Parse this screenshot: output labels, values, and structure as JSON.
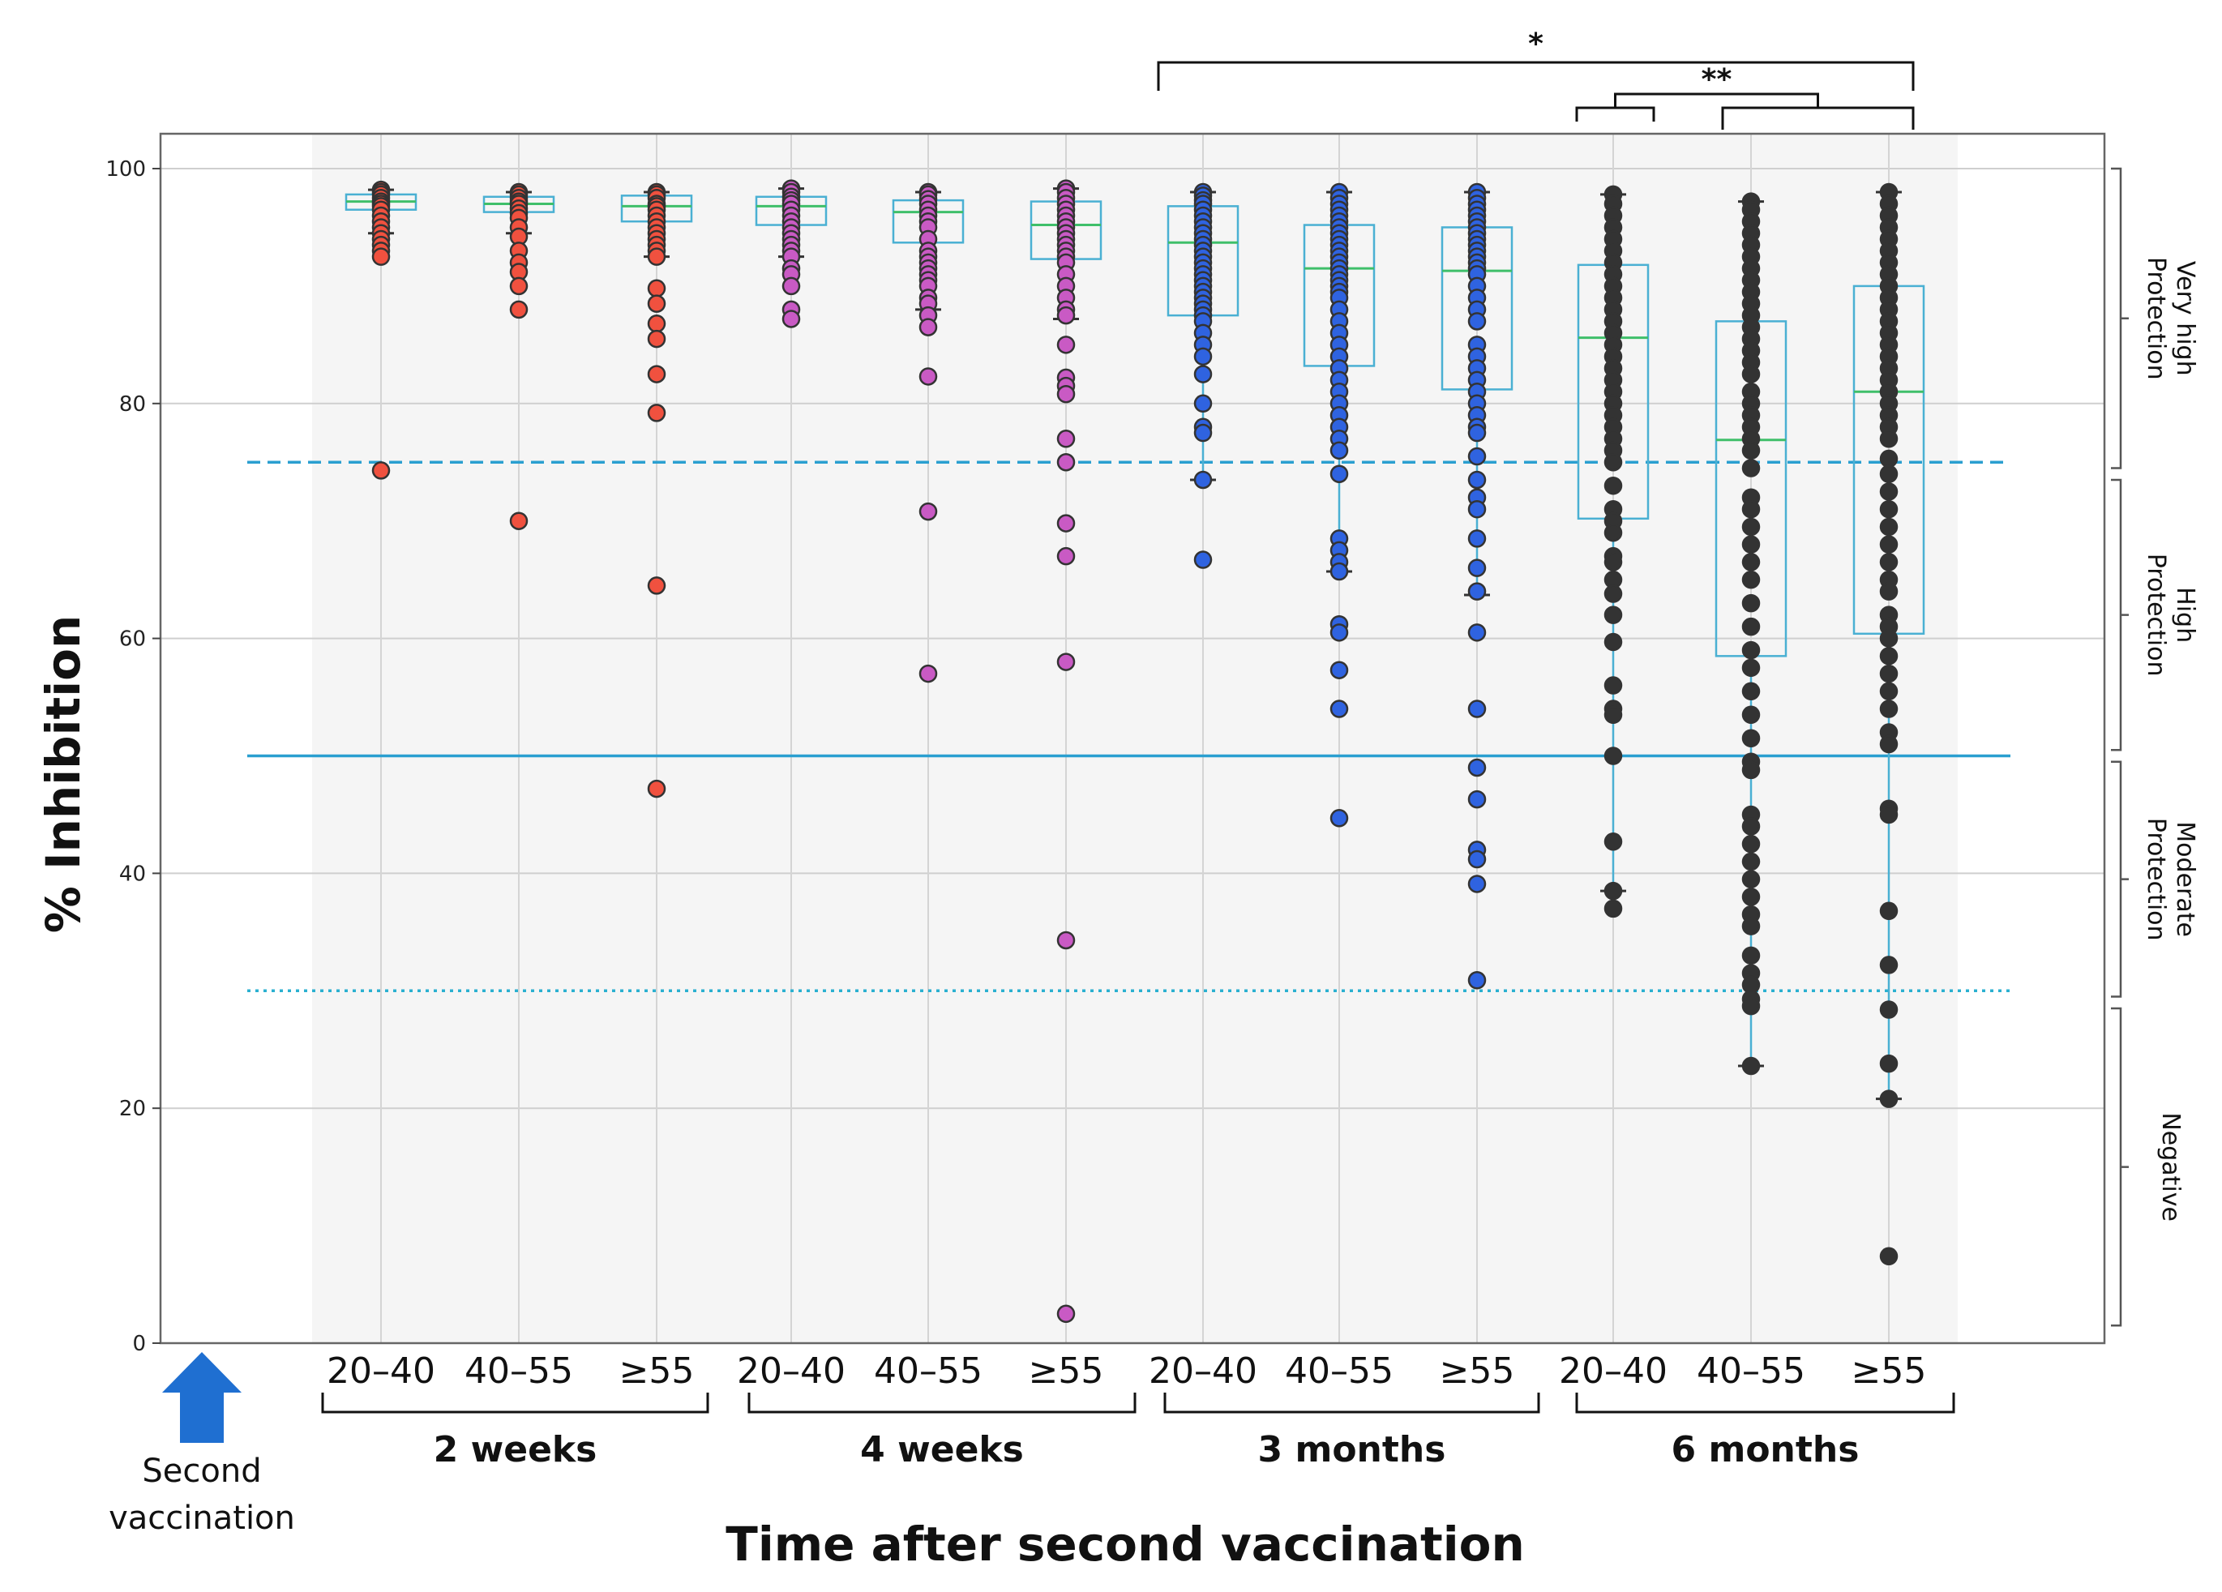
{
  "chart_data": {
    "type": "box",
    "title": "",
    "xlabel": "Time after second vaccination",
    "ylabel": "% Inhibition",
    "ylim": [
      0,
      100
    ],
    "yticks": [
      0,
      20,
      40,
      60,
      80,
      100
    ],
    "grid": true,
    "periods": [
      "2 weeks",
      "4 weeks",
      "3 months",
      "6 months"
    ],
    "age_groups": [
      "20–40",
      "40–55",
      "≥55"
    ],
    "reference_lines": [
      {
        "name": "very-high-threshold",
        "value": 75,
        "style": "dashed",
        "color": "#2a9fd0"
      },
      {
        "name": "high-threshold",
        "value": 50,
        "style": "solid",
        "color": "#2a9fd0"
      },
      {
        "name": "moderate-threshold",
        "value": 30,
        "style": "dotted",
        "color": "#2ab0d0"
      }
    ],
    "protection_zones": [
      {
        "label": "Very high Protection",
        "lines": [
          "Very high",
          "Protection"
        ],
        "range": [
          74.5,
          100
        ]
      },
      {
        "label": "High Protection",
        "lines": [
          "High",
          "Protection"
        ],
        "range": [
          50.5,
          73.5
        ]
      },
      {
        "label": "Moderate Protection",
        "lines": [
          "Moderate",
          "Protection"
        ],
        "range": [
          29.5,
          49.5
        ]
      },
      {
        "label": "Negative",
        "lines": [
          "Negative"
        ],
        "range": [
          1.5,
          28.5
        ]
      }
    ],
    "significance": [
      {
        "label": "*",
        "from": [
          2,
          0
        ],
        "to": [
          3,
          2
        ],
        "level": 1
      },
      {
        "label": "**",
        "pairs": [
          [
            [
              3,
              0
            ],
            [
              3,
              1
            ]
          ],
          [
            [
              3,
              1
            ],
            [
              3,
              2
            ]
          ]
        ],
        "level": 2
      }
    ],
    "marker_colors": {
      "2 weeks": "#f0513f",
      "4 weeks": "#c95ac4",
      "3 months": "#2f63e0",
      "6 months": "#333333"
    },
    "groups": [
      {
        "period": "2 weeks",
        "age": "20–40",
        "q1": 96.5,
        "median": 97.2,
        "q3": 97.8,
        "whisker_low": 94.5,
        "whisker_high": 98.2,
        "points": [
          98.2,
          98.0,
          97.8,
          97.5,
          97.2,
          97.0,
          96.8,
          96.5,
          96.0,
          95.5,
          95.0,
          94.5,
          94.0,
          93.5,
          93.0,
          92.5,
          74.3
        ]
      },
      {
        "period": "2 weeks",
        "age": "40–55",
        "q1": 96.3,
        "median": 97.0,
        "q3": 97.6,
        "whisker_low": 94.5,
        "whisker_high": 98.0,
        "points": [
          98.0,
          97.8,
          97.5,
          97.2,
          97.0,
          96.6,
          96.2,
          95.8,
          95.0,
          94.2,
          93.0,
          92.0,
          91.2,
          90.0,
          88.0,
          70.0
        ]
      },
      {
        "period": "2 weeks",
        "age": "≥55",
        "q1": 95.5,
        "median": 96.8,
        "q3": 97.7,
        "whisker_low": 92.5,
        "whisker_high": 98.0,
        "points": [
          98.0,
          97.8,
          97.5,
          97.0,
          96.8,
          96.5,
          96.0,
          95.5,
          95.0,
          94.5,
          94.0,
          93.5,
          93.0,
          92.5,
          89.8,
          88.5,
          86.8,
          85.5,
          82.5,
          79.2,
          64.5,
          47.2
        ]
      },
      {
        "period": "4 weeks",
        "age": "20–40",
        "q1": 95.2,
        "median": 96.8,
        "q3": 97.6,
        "whisker_low": 92.5,
        "whisker_high": 98.3,
        "points": [
          98.3,
          98.0,
          97.6,
          97.3,
          97.0,
          96.5,
          96.0,
          95.5,
          95.0,
          94.5,
          94.0,
          93.5,
          93.0,
          92.5,
          91.5,
          91.0,
          90.0,
          88.0,
          87.2
        ]
      },
      {
        "period": "4 weeks",
        "age": "40–55",
        "q1": 93.7,
        "median": 96.3,
        "q3": 97.3,
        "whisker_low": 88.0,
        "whisker_high": 98.0,
        "points": [
          98.0,
          97.8,
          97.4,
          97.0,
          96.5,
          96.0,
          95.5,
          95.0,
          94.0,
          93.0,
          92.5,
          92.0,
          91.5,
          91.0,
          90.5,
          90.0,
          89.0,
          88.5,
          87.5,
          86.5,
          82.3,
          70.8,
          57.0
        ]
      },
      {
        "period": "4 weeks",
        "age": "≥55",
        "q1": 92.3,
        "median": 95.2,
        "q3": 97.2,
        "whisker_low": 87.2,
        "whisker_high": 98.3,
        "points": [
          98.3,
          98.0,
          97.5,
          97.0,
          96.5,
          96.0,
          95.5,
          95.0,
          94.5,
          94.0,
          93.5,
          93.0,
          92.5,
          92.0,
          91.0,
          90.0,
          89.0,
          88.0,
          87.5,
          85.0,
          82.2,
          81.5,
          80.8,
          77.0,
          75.0,
          69.8,
          67.0,
          58.0,
          34.3,
          2.5
        ]
      },
      {
        "period": "3 months",
        "age": "20–40",
        "q1": 87.5,
        "median": 93.7,
        "q3": 96.8,
        "whisker_low": 73.5,
        "whisker_high": 98.0,
        "points": [
          98.0,
          97.7,
          97.3,
          97.0,
          96.5,
          96.0,
          95.5,
          95.0,
          94.5,
          94.0,
          93.5,
          93.0,
          92.5,
          92.0,
          91.5,
          91.0,
          90.5,
          90.0,
          89.5,
          89.0,
          88.5,
          88.0,
          87.5,
          87.0,
          86.0,
          85.0,
          84.0,
          82.5,
          80.0,
          78.0,
          77.5,
          73.5,
          66.7
        ]
      },
      {
        "period": "3 months",
        "age": "40–55",
        "q1": 83.2,
        "median": 91.5,
        "q3": 95.2,
        "whisker_low": 65.7,
        "whisker_high": 98.0,
        "points": [
          98.0,
          97.5,
          97.0,
          96.5,
          96.0,
          95.5,
          95.0,
          94.5,
          94.0,
          93.5,
          93.0,
          92.5,
          92.0,
          91.5,
          91.0,
          90.5,
          90.0,
          89.5,
          89.0,
          88.0,
          87.0,
          86.0,
          85.0,
          84.0,
          83.0,
          82.0,
          81.0,
          80.0,
          79.0,
          78.0,
          77.0,
          76.0,
          74.0,
          68.5,
          67.5,
          66.5,
          65.7,
          61.2,
          60.5,
          57.3,
          54.0,
          44.7
        ]
      },
      {
        "period": "3 months",
        "age": "≥55",
        "q1": 81.2,
        "median": 91.3,
        "q3": 95.0,
        "whisker_low": 63.7,
        "whisker_high": 98.0,
        "points": [
          98.0,
          97.5,
          97.0,
          96.5,
          96.0,
          95.5,
          95.0,
          94.5,
          94.0,
          93.5,
          93.0,
          92.5,
          92.0,
          91.5,
          91.0,
          90.0,
          89.0,
          88.0,
          87.0,
          85.0,
          84.0,
          83.0,
          82.0,
          81.0,
          80.0,
          79.0,
          78.0,
          77.5,
          75.5,
          73.5,
          72.0,
          71.0,
          68.5,
          66.0,
          64.0,
          60.5,
          54.0,
          49.0,
          46.3,
          42.0,
          41.2,
          39.1,
          30.9
        ]
      },
      {
        "period": "6 months",
        "age": "20–40",
        "q1": 70.2,
        "median": 85.6,
        "q3": 91.8,
        "whisker_low": 38.5,
        "whisker_high": 97.8,
        "points": [
          97.8,
          97.0,
          96.0,
          95.0,
          94.0,
          93.0,
          92.0,
          91.0,
          90.0,
          89.0,
          88.0,
          87.0,
          86.0,
          85.0,
          84.0,
          83.0,
          82.0,
          81.0,
          80.0,
          79.0,
          78.0,
          77.0,
          76.0,
          75.0,
          73.0,
          71.0,
          70.0,
          69.0,
          67.0,
          66.5,
          65.0,
          63.8,
          62.0,
          59.7,
          56.0,
          54.0,
          53.5,
          50.0,
          42.7,
          38.5,
          37.0
        ]
      },
      {
        "period": "6 months",
        "age": "40–55",
        "q1": 58.5,
        "median": 76.9,
        "q3": 87.0,
        "whisker_low": 23.6,
        "whisker_high": 97.2,
        "points": [
          97.2,
          96.5,
          95.5,
          94.5,
          93.5,
          92.5,
          91.5,
          90.5,
          89.5,
          88.5,
          87.5,
          86.5,
          85.5,
          84.5,
          83.5,
          82.5,
          81.0,
          80.0,
          79.0,
          78.0,
          77.0,
          76.0,
          74.5,
          72.0,
          71.0,
          69.5,
          68.0,
          66.5,
          65.0,
          63.0,
          61.0,
          59.0,
          57.5,
          55.5,
          53.5,
          51.5,
          49.5,
          48.8,
          45.0,
          44.0,
          42.5,
          41.0,
          39.5,
          38.0,
          36.5,
          35.5,
          33.0,
          31.5,
          30.5,
          29.3,
          28.7,
          23.6
        ]
      },
      {
        "period": "6 months",
        "age": "≥55",
        "q1": 60.4,
        "median": 81.0,
        "q3": 90.0,
        "whisker_low": 20.8,
        "whisker_high": 98.0,
        "points": [
          98.0,
          97.0,
          96.0,
          95.0,
          94.0,
          93.0,
          92.0,
          91.0,
          90.0,
          89.0,
          88.0,
          87.0,
          86.0,
          85.0,
          84.0,
          83.0,
          82.0,
          81.0,
          80.0,
          79.0,
          78.0,
          77.0,
          75.3,
          74.0,
          72.5,
          71.0,
          69.5,
          68.0,
          66.5,
          65.0,
          64.0,
          62.0,
          61.0,
          60.0,
          58.5,
          57.0,
          55.5,
          54.0,
          52.0,
          51.0,
          45.5,
          45.0,
          36.8,
          32.2,
          28.4,
          23.8,
          20.8,
          7.4
        ]
      }
    ]
  },
  "vaccination_marker": {
    "label_line1": "Second",
    "label_line2": "vaccination",
    "arrow_color": "#1f6fd1"
  }
}
